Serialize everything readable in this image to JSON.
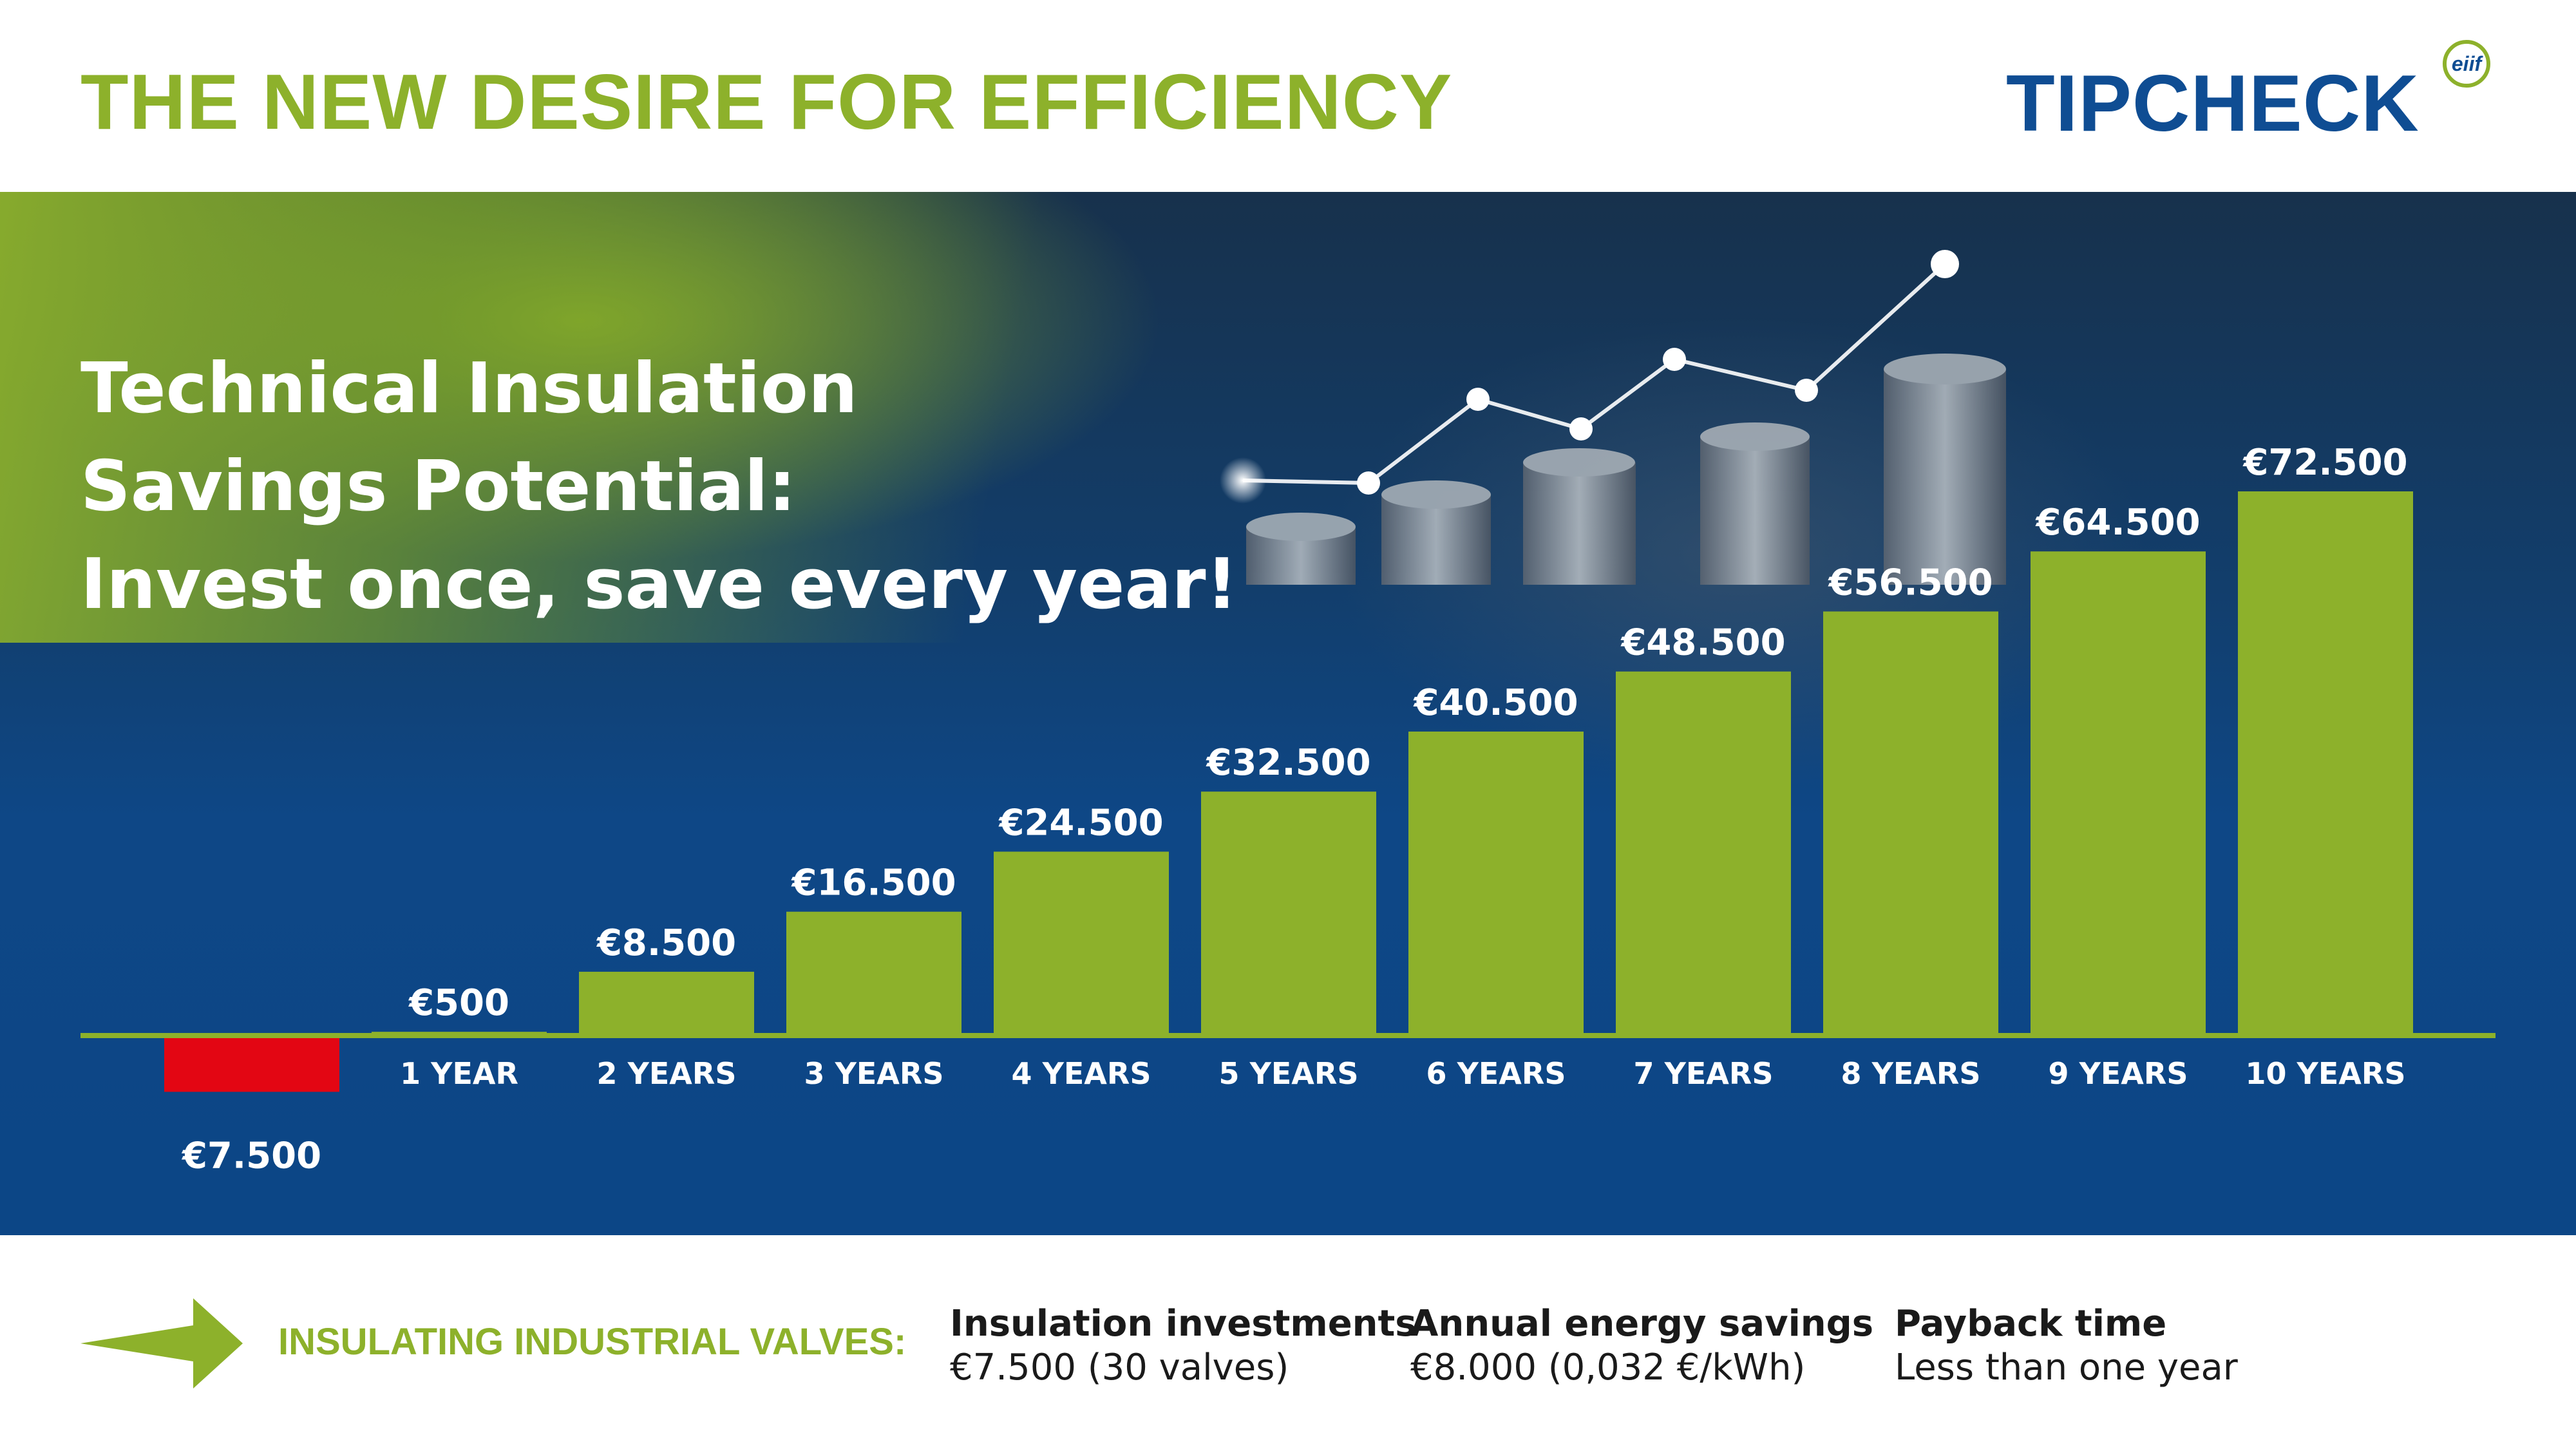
{
  "header": {
    "title": "THE NEW DESIRE FOR EFFICIENCY",
    "logo_text": "TIPCHECK",
    "logo_badge": "eiif"
  },
  "hero": {
    "headline_lines": [
      "Technical Insulation",
      "Savings Potential:",
      "Invest once, save every year!"
    ]
  },
  "footer": {
    "label": "INSULATING INDUSTRIAL VALVES:",
    "stats": [
      {
        "key": "Insulation investments",
        "value": "€7.500 (30 valves)"
      },
      {
        "key": "Annual energy savings",
        "value": "€8.000 (0,032 €/kWh)"
      },
      {
        "key": "Payback time",
        "value": "Less than one year"
      }
    ]
  },
  "colors": {
    "green": "#8db12b",
    "blue_dark": "#0f4d93",
    "red": "#e30613",
    "white": "#ffffff"
  },
  "chart_data": {
    "type": "bar",
    "categories": [
      "",
      "1 YEAR",
      "2 YEARS",
      "3 YEARS",
      "4 YEARS",
      "5 YEARS",
      "6 YEARS",
      "7 YEARS",
      "8 YEARS",
      "9 YEARS",
      "10 YEARS"
    ],
    "values": [
      -7500,
      500,
      8500,
      16500,
      24500,
      32500,
      40500,
      48500,
      56500,
      64500,
      72500
    ],
    "value_labels": [
      "€7.500",
      "€500",
      "€8.500",
      "€16.500",
      "€24.500",
      "€32.500",
      "€40.500",
      "€48.500",
      "€56.500",
      "€64.500",
      "€72.500"
    ],
    "bar_colors": [
      "#e30613",
      "#8db12b",
      "#8db12b",
      "#8db12b",
      "#8db12b",
      "#8db12b",
      "#8db12b",
      "#8db12b",
      "#8db12b",
      "#8db12b",
      "#8db12b"
    ],
    "ylim": [
      -7500,
      72500
    ],
    "grid": false,
    "legend": "none"
  }
}
